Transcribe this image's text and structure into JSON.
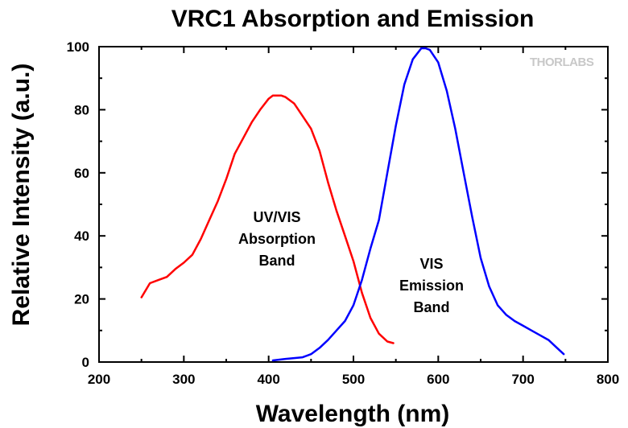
{
  "chart_data": {
    "type": "line",
    "title": "VRC1 Absorption and Emission",
    "xlabel": "Wavelength (nm)",
    "ylabel": "Relative Intensity (a.u.)",
    "xlim": [
      200,
      800
    ],
    "ylim": [
      0,
      100
    ],
    "xticks": [
      200,
      300,
      400,
      500,
      600,
      700,
      800
    ],
    "yticks": [
      0,
      20,
      40,
      60,
      80,
      100
    ],
    "grid": false,
    "logo_text": "THORLABS",
    "annotations": [
      {
        "lines": [
          "UV/VIS",
          "Absorption",
          "Band"
        ]
      },
      {
        "lines": [
          "VIS",
          "Emission",
          "Band"
        ]
      }
    ],
    "series": [
      {
        "color": "#ff0000",
        "x": [
          250,
          260,
          270,
          280,
          290,
          300,
          310,
          320,
          330,
          340,
          350,
          360,
          370,
          380,
          390,
          400,
          405,
          410,
          415,
          420,
          430,
          440,
          450,
          460,
          470,
          480,
          490,
          500,
          510,
          520,
          530,
          540,
          547
        ],
        "y": [
          20.5,
          25,
          26,
          27,
          29.5,
          31.5,
          34,
          39,
          45,
          51,
          58,
          66,
          71,
          76,
          80,
          83.5,
          84.5,
          84.5,
          84.5,
          84,
          82,
          78,
          74,
          67,
          57,
          48,
          40,
          32,
          22,
          14,
          9,
          6.5,
          6
        ]
      },
      {
        "color": "#0000ff",
        "x": [
          405,
          420,
          440,
          450,
          460,
          470,
          480,
          490,
          500,
          510,
          520,
          530,
          540,
          550,
          560,
          570,
          580,
          585,
          590,
          600,
          610,
          620,
          630,
          640,
          650,
          660,
          670,
          680,
          690,
          700,
          710,
          720,
          730,
          740,
          748
        ],
        "y": [
          0.5,
          1,
          1.5,
          2.5,
          4.5,
          7,
          10,
          13,
          18,
          26,
          36,
          45,
          60,
          75,
          88,
          96,
          99.5,
          99.5,
          99,
          95,
          86,
          74,
          60,
          46,
          33,
          24,
          18,
          15,
          13,
          11.5,
          10,
          8.5,
          7,
          4.5,
          2.5
        ]
      }
    ]
  }
}
